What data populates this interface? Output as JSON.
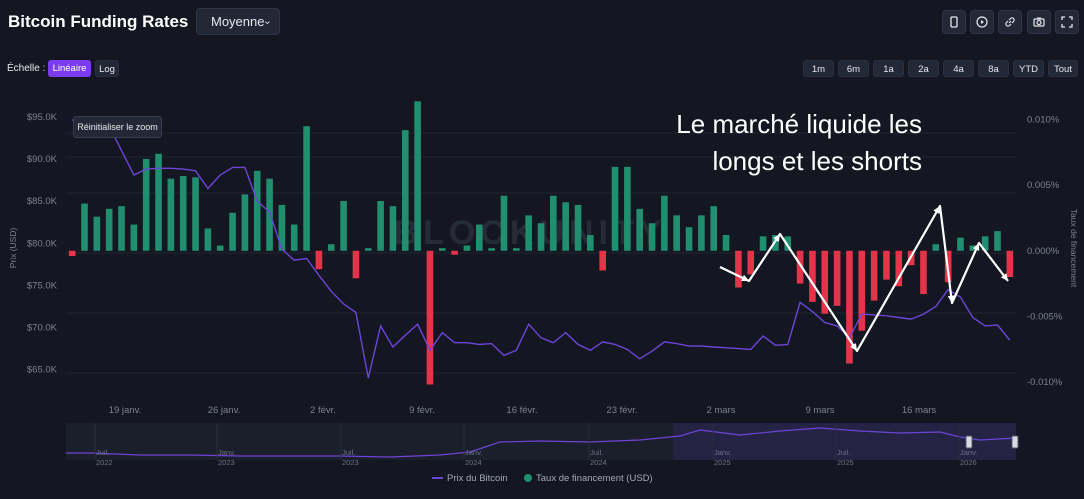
{
  "header": {
    "title": "Bitcoin Funding Rates",
    "average_select": "Moyenne",
    "tools": [
      "phone-icon",
      "play-icon",
      "link-icon",
      "camera-icon",
      "expand-icon"
    ]
  },
  "scale": {
    "label": "Échelle :",
    "linear": "Linéaire",
    "log": "Log"
  },
  "ranges": [
    "1m",
    "6m",
    "1a",
    "2a",
    "4a",
    "8a",
    "YTD",
    "Tout"
  ],
  "tooltip": "Réinitialiser le zoom",
  "annotation": {
    "line1": "Le marché liquide les",
    "line2": "longs et les shorts"
  },
  "legend": {
    "price": "Prix du Bitcoin",
    "funding": "Taux de financement (USD)"
  },
  "colors": {
    "background": "#141722",
    "price_line": "#6b45d6",
    "positive_bar": "#1f8f6f",
    "negative_bar": "#e3344a",
    "accent": "#7b3cf0"
  },
  "watermark": "BLOCKUNITY",
  "chart_data": {
    "type": "bar+line",
    "left_axis": {
      "label": "Prix (USD)",
      "ticks": [
        "$65.0K",
        "$70.0K",
        "$75.0K",
        "$80.0K",
        "$85.0K",
        "$90.0K",
        "$95.0K"
      ],
      "tick_values": [
        65000,
        70000,
        75000,
        80000,
        85000,
        90000,
        95000
      ],
      "range": [
        62000,
        97000
      ]
    },
    "right_axis": {
      "label": "Taux de financement",
      "ticks": [
        "0.010%",
        "0.005%",
        "0.000%",
        "-0.005%",
        "-0.010%"
      ],
      "tick_values": [
        0.01,
        0.005,
        0,
        -0.005,
        -0.01
      ],
      "range": [
        -0.011,
        0.0115
      ]
    },
    "x_axis": {
      "ticks": [
        "19 janv.",
        "26 janv.",
        "2 févr.",
        "9 févr.",
        "16 févr.",
        "23 févr.",
        "2 mars",
        "9 mars",
        "16 mars"
      ]
    },
    "funding_rate": [
      -0.0004,
      0.0036,
      0.0026,
      0.0032,
      0.0034,
      0.002,
      0.007,
      0.0074,
      0.0055,
      0.0057,
      0.0056,
      0.0017,
      0.0004,
      0.0029,
      0.0043,
      0.0061,
      0.0055,
      0.0035,
      0.002,
      0.0095,
      -0.0014,
      0.0005,
      0.0038,
      -0.0021,
      0.0002,
      0.0038,
      0.0034,
      0.0092,
      0.0114,
      -0.0102,
      0.0002,
      -0.0003,
      0.0004,
      0.002,
      0.0002,
      0.0042,
      0.0002,
      0.0027,
      0.0021,
      0.0042,
      0.0037,
      0.0035,
      0.0012,
      -0.0015,
      0.0064,
      0.0064,
      0.0032,
      0.0021,
      0.0042,
      0.0027,
      0.0018,
      0.0027,
      0.0034,
      0.0012,
      -0.0028,
      -0.0018,
      0.0011,
      0.0012,
      0.0011,
      -0.0025,
      -0.0039,
      -0.0048,
      -0.0042,
      -0.0086,
      -0.0061,
      -0.0038,
      -0.0022,
      -0.0027,
      -0.0011,
      -0.0033,
      0.0005,
      -0.0024,
      0.001,
      0.0004,
      0.0011,
      0.0015,
      -0.002
    ],
    "btc_price": [
      94600,
      94800,
      93500,
      93900,
      91000,
      88100,
      88800,
      88900,
      88900,
      88800,
      88600,
      86500,
      88100,
      89000,
      89000,
      85000,
      83700,
      79300,
      78000,
      78200,
      76200,
      74300,
      72800,
      71800,
      64000,
      70200,
      67700,
      69100,
      70400,
      67300,
      69400,
      68200,
      68200,
      68000,
      68100,
      66700,
      67300,
      70400,
      68800,
      68200,
      69400,
      68000,
      67300,
      68300,
      68000,
      67400,
      66300,
      67200,
      68300,
      68100,
      67800,
      67800,
      67700,
      67600,
      67500,
      67400,
      69000,
      67900,
      68000,
      73000,
      71900,
      70600,
      70200,
      68800,
      71600,
      71500,
      71400,
      71200,
      71000,
      71600,
      72500,
      74500,
      73600,
      71200,
      70200,
      70300,
      68500
    ]
  }
}
